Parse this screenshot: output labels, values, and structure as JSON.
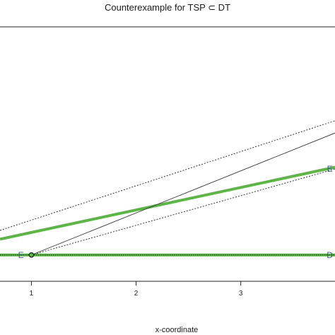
{
  "chart_data": {
    "type": "line",
    "title": "Counterexample for TSP ⊂ DT",
    "xlabel": "x-coordinate",
    "ylabel": "",
    "xlim": [
      0.7,
      3.9
    ],
    "ylim": [
      -0.3,
      2.6
    ],
    "x_ticks": [
      1,
      2,
      3
    ],
    "x_tick_labels": [
      "1",
      "2",
      "3"
    ],
    "colors": {
      "frame": "#222222",
      "green": "#5cb546",
      "dark_green": "#1f4e1a",
      "thin": "#333333",
      "label": "#3a5f8f"
    },
    "points": [
      {
        "label": "E",
        "x": 0.9,
        "y": 0
      },
      {
        "label": "",
        "x": 1.0,
        "y": 0
      },
      {
        "label": "E",
        "x": 3.85,
        "y": 0.98
      },
      {
        "label": "D",
        "x": 3.85,
        "y": 0
      }
    ],
    "segments": [
      {
        "style": "thick-green",
        "x1": 0.7,
        "y1": 0.18,
        "x2": 3.9,
        "y2": 1.0
      },
      {
        "style": "thick-green",
        "x1": 0.7,
        "y1": 0,
        "x2": 3.9,
        "y2": 0
      },
      {
        "style": "dotted-dark",
        "x1": 0.7,
        "y1": 0,
        "x2": 3.9,
        "y2": 0
      },
      {
        "style": "thin-solid",
        "x1": 1.0,
        "y1": 0,
        "x2": 3.9,
        "y2": 1.39
      },
      {
        "style": "dotted",
        "x1": 0.7,
        "y1": 0.28,
        "x2": 3.9,
        "y2": 1.53
      },
      {
        "style": "dotted",
        "x1": 1.0,
        "y1": 0,
        "x2": 3.9,
        "y2": 0.98
      }
    ]
  }
}
